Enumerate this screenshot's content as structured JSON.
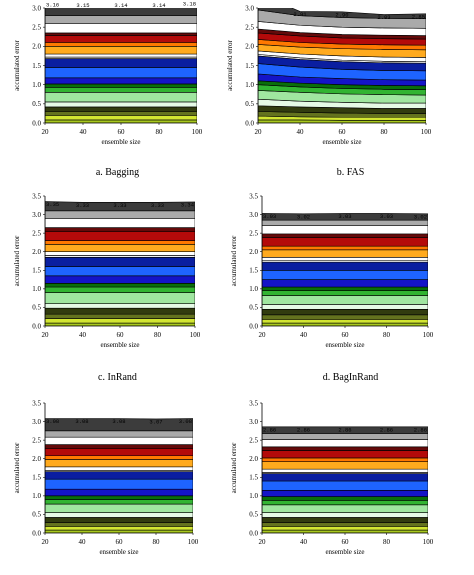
{
  "colors": {
    "band_colors": [
      "#a8c81e",
      "#d2e632",
      "#64731e",
      "#323c0f",
      "#e6fae6",
      "#a0e6a0",
      "#32b432",
      "#0a6e0a",
      "#1414c8",
      "#1e64ff",
      "#0a1ea0",
      "#f0f0f0",
      "#ffffff",
      "#ffaa1e",
      "#ff7800",
      "#b40a0a",
      "#640a0a",
      "#ffffff",
      "#aaaaaa",
      "#3c3c3c"
    ],
    "band_outline": "#000000"
  },
  "chart_data": [
    {
      "type": "area",
      "caption": "a. Bagging",
      "xlabel": "ensemble size",
      "ylabel": "accumulated error",
      "x": [
        20,
        40,
        60,
        80,
        100
      ],
      "xticks": [
        "20",
        "40",
        "60",
        "80",
        "100"
      ],
      "yticks": [
        "0.0",
        "0.5",
        "1.0",
        "1.5",
        "2.0",
        "2.5",
        "3.0"
      ],
      "ylim": [
        0,
        3.0
      ],
      "xlim": [
        20,
        100
      ],
      "stacked_boundaries": [
        [
          0.08,
          0.08,
          0.08,
          0.08,
          0.08
        ],
        [
          0.2,
          0.2,
          0.2,
          0.2,
          0.2
        ],
        [
          0.3,
          0.3,
          0.3,
          0.3,
          0.3
        ],
        [
          0.42,
          0.42,
          0.42,
          0.42,
          0.42
        ],
        [
          0.55,
          0.55,
          0.55,
          0.55,
          0.55
        ],
        [
          0.8,
          0.8,
          0.8,
          0.8,
          0.8
        ],
        [
          0.93,
          0.93,
          0.93,
          0.93,
          0.93
        ],
        [
          1.02,
          1.02,
          1.02,
          1.02,
          1.02
        ],
        [
          1.18,
          1.18,
          1.18,
          1.18,
          1.18
        ],
        [
          1.45,
          1.45,
          1.45,
          1.45,
          1.45
        ],
        [
          1.68,
          1.68,
          1.68,
          1.68,
          1.68
        ],
        [
          1.72,
          1.72,
          1.72,
          1.72,
          1.72
        ],
        [
          1.8,
          1.8,
          1.8,
          1.8,
          1.8
        ],
        [
          2.0,
          2.0,
          2.0,
          2.0,
          2.0
        ],
        [
          2.1,
          2.1,
          2.1,
          2.1,
          2.1
        ],
        [
          2.28,
          2.28,
          2.28,
          2.28,
          2.28
        ],
        [
          2.35,
          2.35,
          2.35,
          2.35,
          2.35
        ],
        [
          2.6,
          2.6,
          2.6,
          2.6,
          2.6
        ],
        [
          2.8,
          2.8,
          2.8,
          2.8,
          2.8
        ],
        [
          3.16,
          3.15,
          3.14,
          3.14,
          3.18
        ]
      ],
      "top_labels": [
        "3.16",
        "3.15",
        "3.14",
        "3.14",
        "3.18"
      ]
    },
    {
      "type": "area",
      "caption": "b. FAS",
      "xlabel": "ensemble size",
      "ylabel": "accumulated error",
      "x": [
        20,
        40,
        60,
        80,
        100
      ],
      "xticks": [
        "20",
        "40",
        "60",
        "80",
        "100"
      ],
      "yticks": [
        "0.0",
        "0.5",
        "1.0",
        "1.5",
        "2.0",
        "2.5",
        "3.0"
      ],
      "ylim": [
        0,
        3.0
      ],
      "xlim": [
        20,
        100
      ],
      "stacked_boundaries": [
        [
          0.08,
          0.08,
          0.07,
          0.07,
          0.07
        ],
        [
          0.18,
          0.16,
          0.15,
          0.15,
          0.15
        ],
        [
          0.3,
          0.28,
          0.26,
          0.25,
          0.25
        ],
        [
          0.45,
          0.42,
          0.4,
          0.38,
          0.38
        ],
        [
          0.62,
          0.57,
          0.54,
          0.52,
          0.52
        ],
        [
          0.85,
          0.8,
          0.76,
          0.74,
          0.73
        ],
        [
          1.0,
          0.94,
          0.9,
          0.88,
          0.87
        ],
        [
          1.1,
          1.04,
          1.0,
          0.98,
          0.97
        ],
        [
          1.28,
          1.2,
          1.16,
          1.13,
          1.12
        ],
        [
          1.55,
          1.46,
          1.4,
          1.37,
          1.36
        ],
        [
          1.75,
          1.66,
          1.6,
          1.57,
          1.56
        ],
        [
          1.79,
          1.7,
          1.64,
          1.61,
          1.6
        ],
        [
          1.88,
          1.8,
          1.75,
          1.72,
          1.71
        ],
        [
          2.05,
          1.98,
          1.94,
          1.92,
          1.91
        ],
        [
          2.18,
          2.1,
          2.06,
          2.04,
          2.03
        ],
        [
          2.35,
          2.27,
          2.22,
          2.2,
          2.19
        ],
        [
          2.45,
          2.36,
          2.31,
          2.29,
          2.28
        ],
        [
          2.65,
          2.55,
          2.5,
          2.48,
          2.47
        ],
        [
          2.95,
          2.8,
          2.75,
          2.73,
          2.72
        ],
        [
          3.38,
          2.91,
          2.9,
          2.83,
          2.85
        ]
      ],
      "top_labels": [
        "3.38",
        "2.91",
        "2.90",
        "2.83",
        "2.85"
      ]
    },
    {
      "type": "area",
      "caption": "c. InRand",
      "xlabel": "ensemble size",
      "ylabel": "accumulated error",
      "x": [
        20,
        40,
        60,
        80,
        100
      ],
      "xticks": [
        "20",
        "40",
        "60",
        "80",
        "100"
      ],
      "yticks": [
        "0.0",
        "0.5",
        "1.0",
        "1.5",
        "2.0",
        "2.5",
        "3.0",
        "3.5"
      ],
      "ylim": [
        0,
        3.5
      ],
      "xlim": [
        20,
        100
      ],
      "stacked_boundaries": [
        [
          0.08,
          0.08,
          0.08,
          0.08,
          0.08
        ],
        [
          0.2,
          0.2,
          0.2,
          0.2,
          0.2
        ],
        [
          0.32,
          0.32,
          0.32,
          0.32,
          0.32
        ],
        [
          0.48,
          0.48,
          0.48,
          0.48,
          0.48
        ],
        [
          0.6,
          0.6,
          0.6,
          0.6,
          0.6
        ],
        [
          0.9,
          0.9,
          0.9,
          0.9,
          0.9
        ],
        [
          1.05,
          1.05,
          1.05,
          1.05,
          1.05
        ],
        [
          1.15,
          1.15,
          1.15,
          1.15,
          1.15
        ],
        [
          1.35,
          1.35,
          1.35,
          1.35,
          1.35
        ],
        [
          1.6,
          1.6,
          1.6,
          1.6,
          1.6
        ],
        [
          1.85,
          1.85,
          1.85,
          1.85,
          1.85
        ],
        [
          1.9,
          1.9,
          1.9,
          1.9,
          1.9
        ],
        [
          2.0,
          2.0,
          2.0,
          2.0,
          2.0
        ],
        [
          2.2,
          2.2,
          2.2,
          2.2,
          2.2
        ],
        [
          2.3,
          2.3,
          2.3,
          2.3,
          2.3
        ],
        [
          2.55,
          2.55,
          2.55,
          2.55,
          2.55
        ],
        [
          2.65,
          2.65,
          2.65,
          2.65,
          2.65
        ],
        [
          2.9,
          2.9,
          2.9,
          2.9,
          2.9
        ],
        [
          3.1,
          3.1,
          3.1,
          3.1,
          3.1
        ],
        [
          3.35,
          3.33,
          3.33,
          3.33,
          3.34
        ]
      ],
      "top_labels": [
        "3.35",
        "3.33",
        "3.33",
        "3.33",
        "3.34"
      ]
    },
    {
      "type": "area",
      "caption": "d. BagInRand",
      "xlabel": "ensemble size",
      "ylabel": "accumulated error",
      "x": [
        20,
        40,
        60,
        80,
        100
      ],
      "xticks": [
        "20",
        "40",
        "60",
        "80",
        "100"
      ],
      "yticks": [
        "0.0",
        "0.5",
        "1.0",
        "1.5",
        "2.0",
        "2.5",
        "3.0",
        "3.5"
      ],
      "ylim": [
        0,
        3.5
      ],
      "xlim": [
        20,
        100
      ],
      "stacked_boundaries": [
        [
          0.08,
          0.08,
          0.08,
          0.08,
          0.08
        ],
        [
          0.18,
          0.18,
          0.18,
          0.18,
          0.18
        ],
        [
          0.3,
          0.3,
          0.3,
          0.3,
          0.3
        ],
        [
          0.45,
          0.45,
          0.45,
          0.45,
          0.45
        ],
        [
          0.58,
          0.58,
          0.58,
          0.58,
          0.58
        ],
        [
          0.82,
          0.82,
          0.82,
          0.82,
          0.82
        ],
        [
          0.95,
          0.95,
          0.95,
          0.95,
          0.95
        ],
        [
          1.05,
          1.05,
          1.05,
          1.05,
          1.05
        ],
        [
          1.25,
          1.25,
          1.25,
          1.25,
          1.25
        ],
        [
          1.5,
          1.5,
          1.5,
          1.5,
          1.5
        ],
        [
          1.72,
          1.72,
          1.72,
          1.72,
          1.72
        ],
        [
          1.76,
          1.76,
          1.76,
          1.76,
          1.76
        ],
        [
          1.85,
          1.85,
          1.85,
          1.85,
          1.85
        ],
        [
          2.05,
          2.05,
          2.05,
          2.05,
          2.05
        ],
        [
          2.15,
          2.15,
          2.15,
          2.15,
          2.15
        ],
        [
          2.38,
          2.38,
          2.38,
          2.38,
          2.38
        ],
        [
          2.48,
          2.48,
          2.48,
          2.48,
          2.48
        ],
        [
          2.7,
          2.7,
          2.7,
          2.7,
          2.7
        ],
        [
          2.85,
          2.85,
          2.85,
          2.85,
          2.85
        ],
        [
          3.03,
          3.02,
          3.03,
          3.03,
          3.02
        ]
      ],
      "top_labels": [
        "3.03",
        "3.02",
        "3.03",
        "3.03",
        "3.02"
      ]
    },
    {
      "type": "area",
      "caption": "",
      "xlabel": "ensemble size",
      "ylabel": "accumulated error",
      "x": [
        20,
        40,
        60,
        80,
        100
      ],
      "xticks": [
        "20",
        "40",
        "60",
        "80",
        "100"
      ],
      "yticks": [
        "0.0",
        "0.5",
        "1.0",
        "1.5",
        "2.0",
        "2.5",
        "3.0",
        "3.5"
      ],
      "ylim": [
        0,
        3.5
      ],
      "xlim": [
        20,
        100
      ],
      "stacked_boundaries": [
        [
          0.08,
          0.08,
          0.08,
          0.08,
          0.08
        ],
        [
          0.18,
          0.18,
          0.18,
          0.18,
          0.18
        ],
        [
          0.28,
          0.28,
          0.28,
          0.28,
          0.28
        ],
        [
          0.42,
          0.42,
          0.42,
          0.42,
          0.42
        ],
        [
          0.55,
          0.55,
          0.55,
          0.55,
          0.55
        ],
        [
          0.78,
          0.78,
          0.78,
          0.78,
          0.78
        ],
        [
          0.9,
          0.9,
          0.9,
          0.9,
          0.9
        ],
        [
          1.0,
          1.0,
          1.0,
          1.0,
          1.0
        ],
        [
          1.18,
          1.18,
          1.18,
          1.18,
          1.18
        ],
        [
          1.45,
          1.45,
          1.45,
          1.45,
          1.45
        ],
        [
          1.65,
          1.65,
          1.65,
          1.65,
          1.65
        ],
        [
          1.68,
          1.68,
          1.68,
          1.68,
          1.68
        ],
        [
          1.78,
          1.78,
          1.78,
          1.78,
          1.78
        ],
        [
          1.98,
          1.98,
          1.98,
          1.98,
          1.98
        ],
        [
          2.08,
          2.08,
          2.08,
          2.08,
          2.08
        ],
        [
          2.28,
          2.28,
          2.28,
          2.28,
          2.28
        ],
        [
          2.38,
          2.38,
          2.38,
          2.38,
          2.38
        ],
        [
          2.58,
          2.58,
          2.58,
          2.58,
          2.58
        ],
        [
          2.75,
          2.75,
          2.75,
          2.75,
          2.75
        ],
        [
          3.08,
          3.08,
          3.08,
          3.07,
          3.08
        ]
      ],
      "top_labels": [
        "3.08",
        "3.08",
        "3.08",
        "3.07",
        "3.08"
      ]
    },
    {
      "type": "area",
      "caption": "",
      "xlabel": "ensemble size",
      "ylabel": "accumulated error",
      "x": [
        20,
        40,
        60,
        80,
        100
      ],
      "xticks": [
        "20",
        "40",
        "60",
        "80",
        "100"
      ],
      "yticks": [
        "0.0",
        "0.5",
        "1.0",
        "1.5",
        "2.0",
        "2.5",
        "3.0",
        "3.5"
      ],
      "ylim": [
        0,
        3.5
      ],
      "xlim": [
        20,
        100
      ],
      "stacked_boundaries": [
        [
          0.08,
          0.08,
          0.08,
          0.08,
          0.08
        ],
        [
          0.18,
          0.18,
          0.18,
          0.18,
          0.18
        ],
        [
          0.28,
          0.28,
          0.28,
          0.28,
          0.28
        ],
        [
          0.42,
          0.42,
          0.42,
          0.42,
          0.42
        ],
        [
          0.55,
          0.55,
          0.55,
          0.55,
          0.55
        ],
        [
          0.76,
          0.76,
          0.76,
          0.76,
          0.76
        ],
        [
          0.88,
          0.88,
          0.88,
          0.88,
          0.88
        ],
        [
          0.98,
          0.98,
          0.98,
          0.98,
          0.98
        ],
        [
          1.15,
          1.15,
          1.15,
          1.15,
          1.15
        ],
        [
          1.4,
          1.4,
          1.4,
          1.4,
          1.4
        ],
        [
          1.6,
          1.6,
          1.6,
          1.6,
          1.6
        ],
        [
          1.63,
          1.63,
          1.63,
          1.63,
          1.63
        ],
        [
          1.72,
          1.72,
          1.72,
          1.72,
          1.72
        ],
        [
          1.92,
          1.92,
          1.92,
          1.92,
          1.92
        ],
        [
          2.02,
          2.02,
          2.02,
          2.02,
          2.02
        ],
        [
          2.22,
          2.22,
          2.22,
          2.22,
          2.22
        ],
        [
          2.32,
          2.32,
          2.32,
          2.32,
          2.32
        ],
        [
          2.52,
          2.52,
          2.52,
          2.52,
          2.52
        ],
        [
          2.68,
          2.68,
          2.68,
          2.68,
          2.68
        ],
        [
          2.86,
          2.86,
          2.86,
          2.86,
          2.86
        ]
      ],
      "top_labels": [
        "2.86",
        "2.86",
        "2.86",
        "2.86",
        "2.86"
      ]
    }
  ]
}
